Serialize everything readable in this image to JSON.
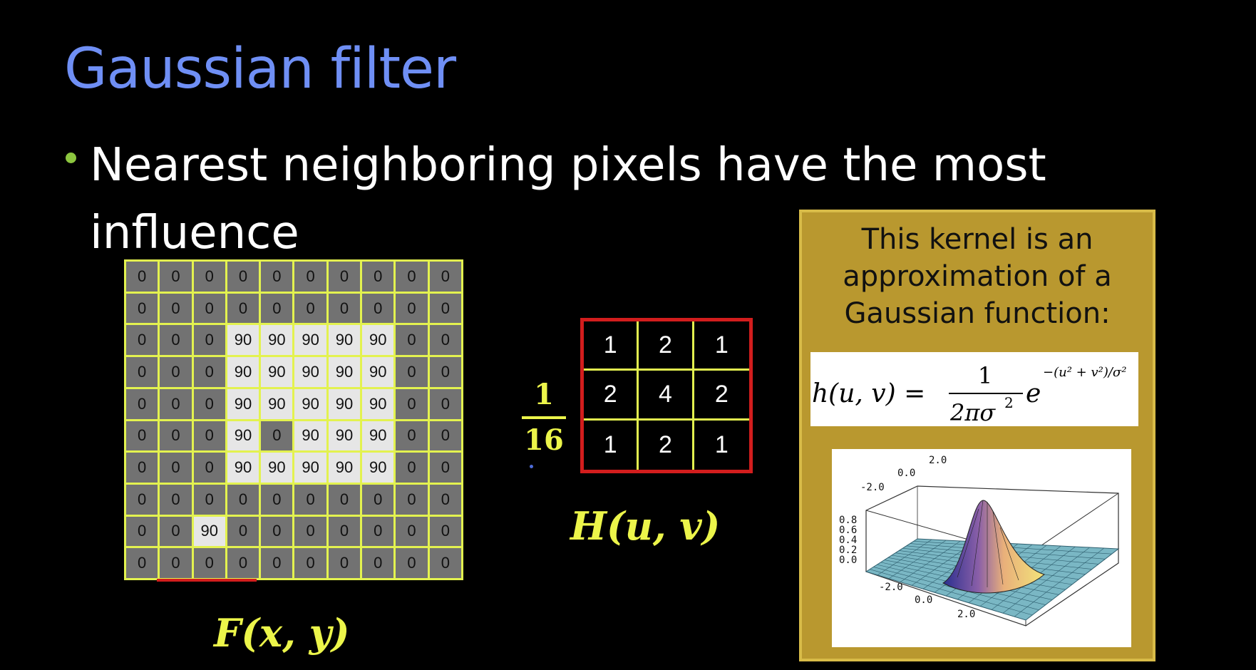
{
  "slide": {
    "title": "Gaussian filter",
    "bullet": "Nearest neighboring pixels have the most\ninfluence"
  },
  "input_image": {
    "label": "F(x, y)",
    "grid": [
      [
        0,
        0,
        0,
        0,
        0,
        0,
        0,
        0,
        0,
        0
      ],
      [
        0,
        0,
        0,
        0,
        0,
        0,
        0,
        0,
        0,
        0
      ],
      [
        0,
        0,
        0,
        90,
        90,
        90,
        90,
        90,
        0,
        0
      ],
      [
        0,
        0,
        0,
        90,
        90,
        90,
        90,
        90,
        0,
        0
      ],
      [
        0,
        0,
        0,
        90,
        90,
        90,
        90,
        90,
        0,
        0
      ],
      [
        0,
        0,
        0,
        90,
        0,
        90,
        90,
        90,
        0,
        0
      ],
      [
        0,
        0,
        0,
        90,
        90,
        90,
        90,
        90,
        0,
        0
      ],
      [
        0,
        0,
        0,
        0,
        0,
        0,
        0,
        0,
        0,
        0
      ],
      [
        0,
        0,
        90,
        0,
        0,
        0,
        0,
        0,
        0,
        0
      ],
      [
        0,
        0,
        0,
        0,
        0,
        0,
        0,
        0,
        0,
        0
      ]
    ]
  },
  "kernel": {
    "label": "H(u, v)",
    "fraction_numerator": "1",
    "fraction_denominator": "16",
    "values": [
      [
        1,
        2,
        1
      ],
      [
        2,
        4,
        2
      ],
      [
        1,
        2,
        1
      ]
    ]
  },
  "note": {
    "text": "This kernel is an\napproximation of a\nGaussian function:",
    "formula": {
      "lhs": "h(u, v) = ",
      "numerator": "1",
      "denominator": "2πσ",
      "denominator_sup": "2",
      "base": "e",
      "exponent": "−(u² + v²)/σ²"
    },
    "plot": {
      "axis_labels": [
        "2.0",
        "0.0",
        "-2.0",
        "0.8",
        "0.6",
        "0.4",
        "0.2",
        "0.0",
        "-2.0",
        "0.0",
        "2.0"
      ]
    }
  },
  "colors": {
    "title": "#6f8ff5",
    "bullet_dot": "#8cc63f",
    "grid_lines": "#e3f24f",
    "kernel_border": "#d21d1d",
    "math_label": "#ecf54a",
    "note_background": "#b9982f"
  }
}
